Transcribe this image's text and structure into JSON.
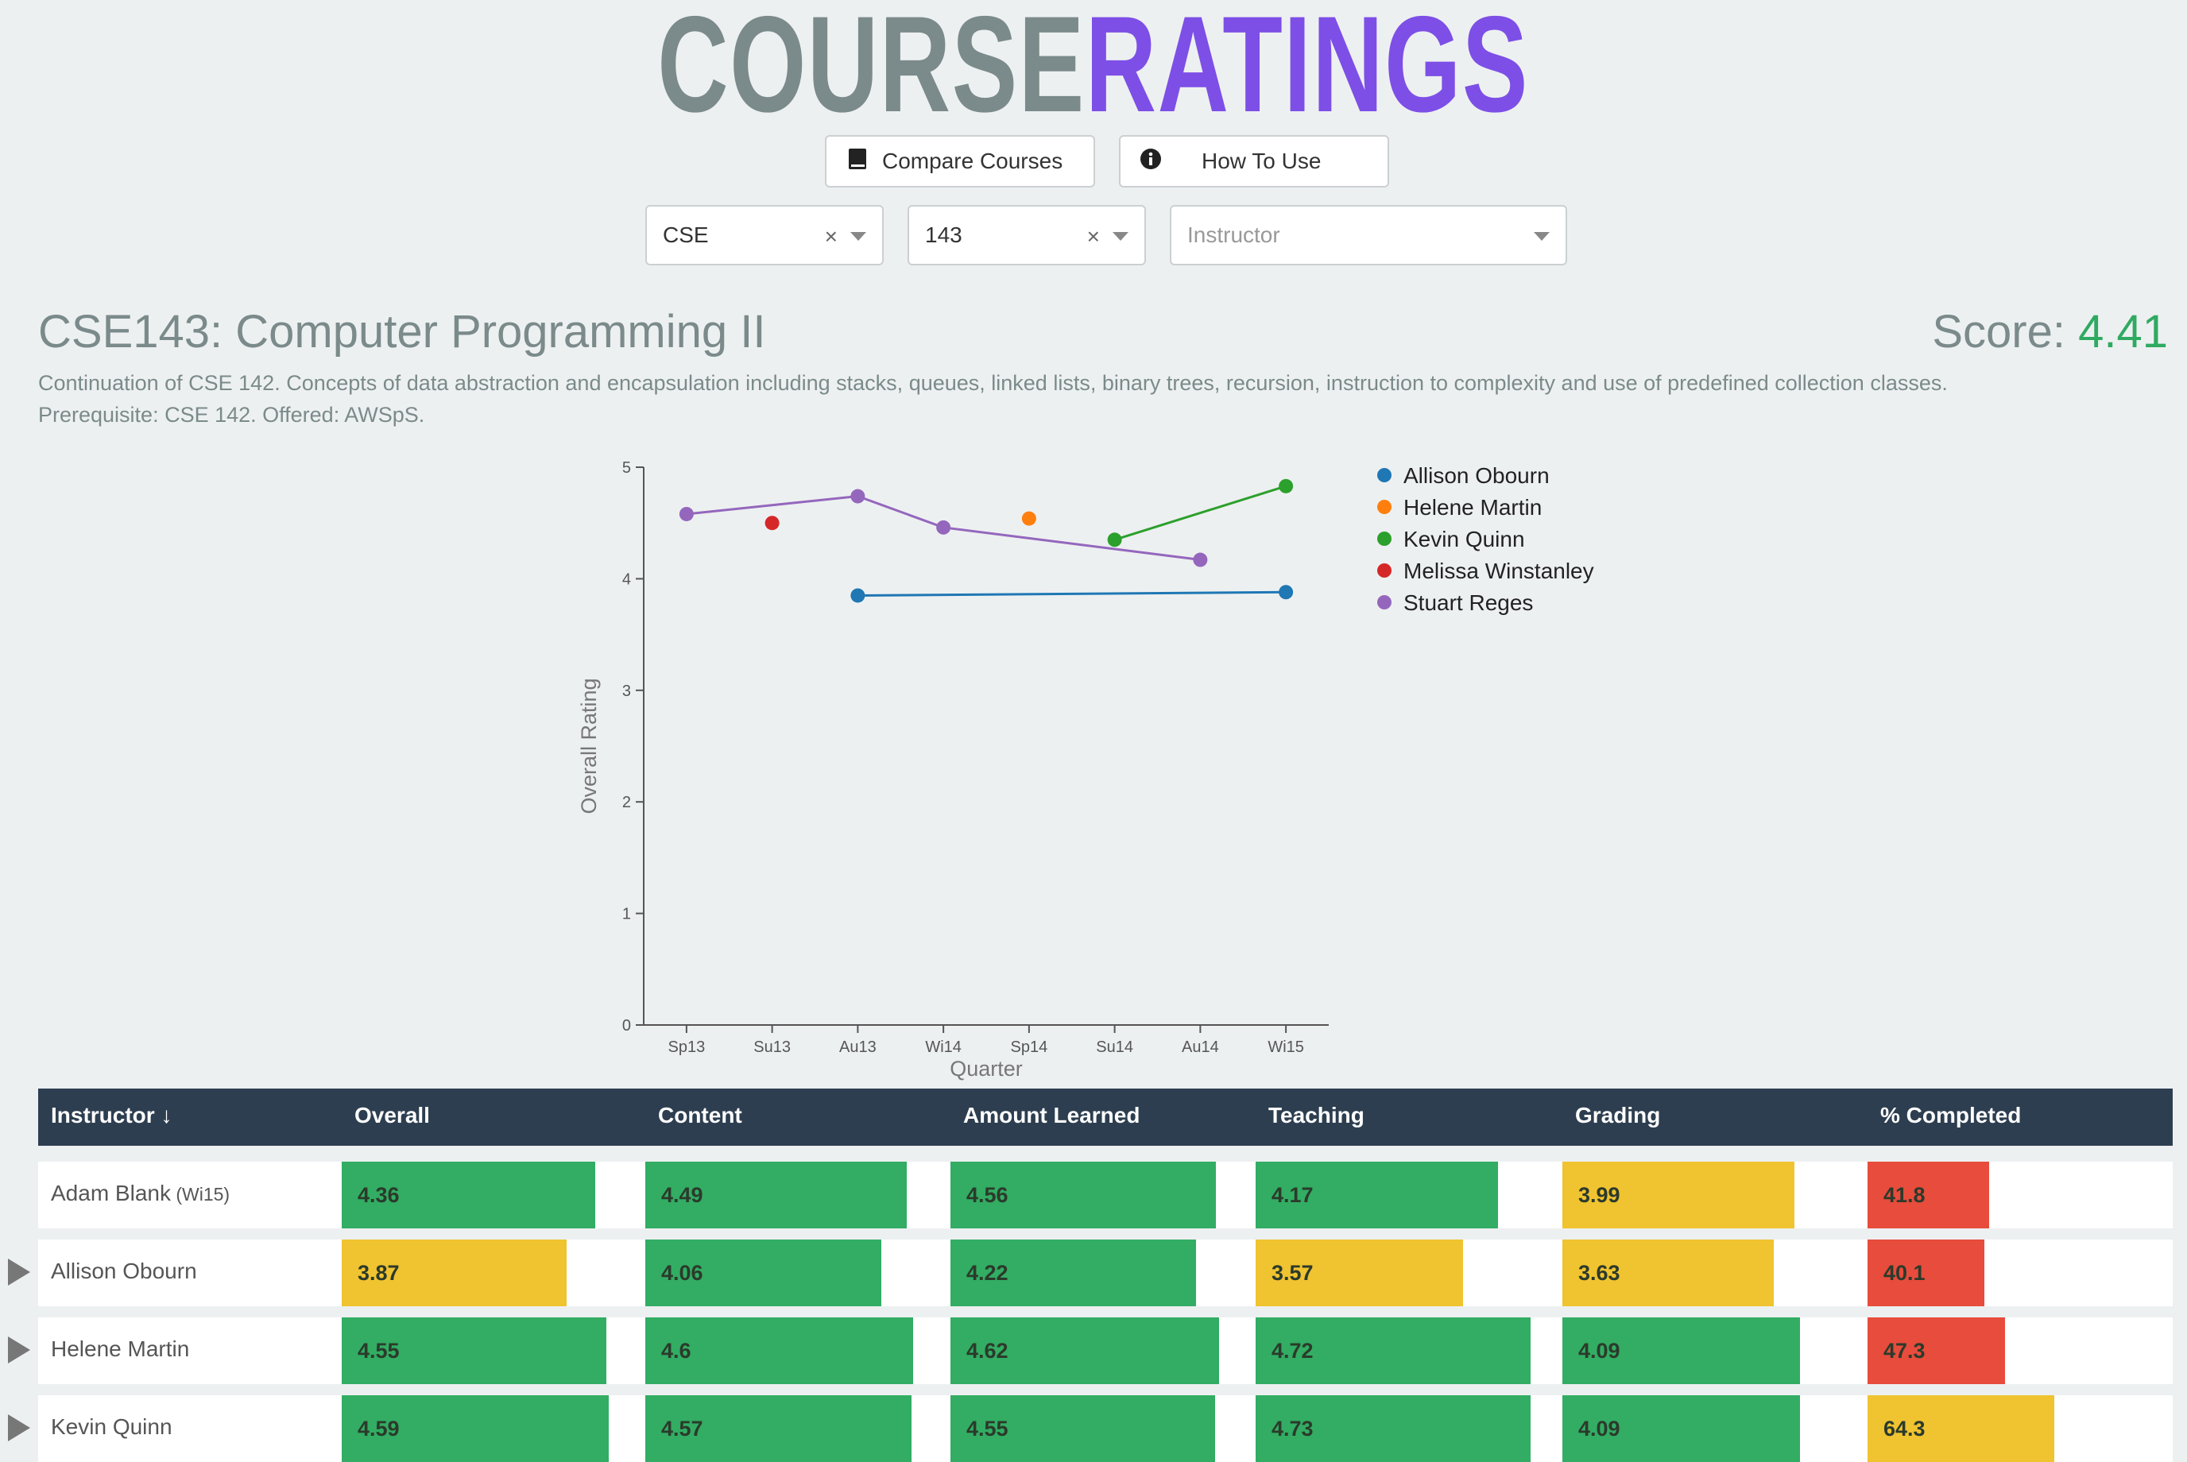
{
  "logo": {
    "part1": "COURSE",
    "part2": "RATINGS"
  },
  "buttons": {
    "compare": "Compare Courses",
    "how_to": "How To Use"
  },
  "filters": {
    "department": "CSE",
    "number": "143",
    "instructor_placeholder": "Instructor",
    "clear_symbol": "×"
  },
  "course": {
    "title": "CSE143: Computer Programming II",
    "score_label": "Score:",
    "score_value": "4.41",
    "description_line1": "Continuation of CSE 142. Concepts of data abstraction and encapsulation including stacks, queues, linked lists, binary trees, recursion, instruction to complexity and use of predefined collection classes.",
    "description_line2": "Prerequisite: CSE 142. Offered: AWSpS."
  },
  "chart_data": {
    "type": "line",
    "xlabel": "Quarter",
    "ylabel": "Overall Rating",
    "ylim": [
      0,
      5
    ],
    "yticks": [
      "0",
      "1",
      "2",
      "3",
      "4",
      "5"
    ],
    "categories": [
      "Sp13",
      "Su13",
      "Au13",
      "Wi14",
      "Sp14",
      "Su14",
      "Au14",
      "Wi15"
    ],
    "legend_position": "top-right",
    "series": [
      {
        "name": "Allison Obourn",
        "color": "#1f77b4",
        "points": [
          [
            "Au13",
            3.85
          ],
          [
            "Wi15",
            3.88
          ]
        ]
      },
      {
        "name": "Helene Martin",
        "color": "#ff7f0e",
        "points": [
          [
            "Sp14",
            4.54
          ]
        ]
      },
      {
        "name": "Kevin Quinn",
        "color": "#2ca02c",
        "points": [
          [
            "Su14",
            4.35
          ],
          [
            "Wi15",
            4.83
          ]
        ]
      },
      {
        "name": "Melissa Winstanley",
        "color": "#d62728",
        "points": [
          [
            "Su13",
            4.5
          ]
        ]
      },
      {
        "name": "Stuart Reges",
        "color": "#9467bd",
        "points": [
          [
            "Sp13",
            4.58
          ],
          [
            "Au13",
            4.74
          ],
          [
            "Wi14",
            4.46
          ],
          [
            "Au14",
            4.17
          ]
        ]
      }
    ]
  },
  "table": {
    "headers": [
      "Instructor ↓",
      "Overall",
      "Content",
      "Amount Learned",
      "Teaching",
      "Grading",
      "% Completed"
    ],
    "colors": {
      "green": "#32ad63",
      "yellow": "#f0c330",
      "red": "#e74c3c"
    },
    "rows": [
      {
        "name": "Adam Blank",
        "sub": "(Wi15)",
        "expandable": false,
        "values": [
          "4.36",
          "4.49",
          "4.56",
          "4.17",
          "3.99",
          "41.8"
        ],
        "colors": [
          "green",
          "green",
          "green",
          "green",
          "yellow",
          "red"
        ],
        "fill": [
          0.872,
          0.898,
          0.912,
          0.834,
          0.798,
          0.418
        ]
      },
      {
        "name": "Allison Obourn",
        "sub": "",
        "expandable": true,
        "values": [
          "3.87",
          "4.06",
          "4.22",
          "3.57",
          "3.63",
          "40.1"
        ],
        "colors": [
          "yellow",
          "green",
          "green",
          "yellow",
          "yellow",
          "red"
        ],
        "fill": [
          0.774,
          0.812,
          0.844,
          0.714,
          0.726,
          0.401
        ]
      },
      {
        "name": "Helene Martin",
        "sub": "",
        "expandable": true,
        "values": [
          "4.55",
          "4.6",
          "4.62",
          "4.72",
          "4.09",
          "47.3"
        ],
        "colors": [
          "green",
          "green",
          "green",
          "green",
          "green",
          "red"
        ],
        "fill": [
          0.91,
          0.92,
          0.924,
          0.944,
          0.818,
          0.473
        ]
      },
      {
        "name": "Kevin Quinn",
        "sub": "",
        "expandable": true,
        "values": [
          "4.59",
          "4.57",
          "4.55",
          "4.73",
          "4.09",
          "64.3"
        ],
        "colors": [
          "green",
          "green",
          "green",
          "green",
          "green",
          "yellow"
        ],
        "fill": [
          0.918,
          0.914,
          0.91,
          0.946,
          0.818,
          0.643
        ]
      }
    ]
  }
}
